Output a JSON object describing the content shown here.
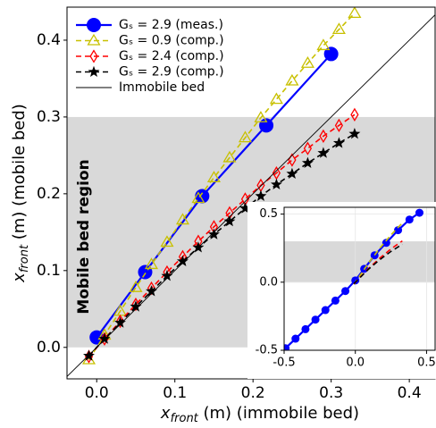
{
  "chart_data": [
    {
      "type": "line",
      "xlabel": {
        "main": "x",
        "sub": "front",
        "rest": " (m) (immobile bed)"
      },
      "ylabel": {
        "main": "x",
        "sub": "front",
        "rest": " (m) (mobile bed)"
      },
      "annotation": "Mobile bed region",
      "shaded_region": {
        "y": [
          0,
          0.3
        ],
        "color": "#d9d9d9"
      },
      "xlim": [
        -0.038,
        0.433
      ],
      "ylim": [
        -0.041,
        0.443
      ],
      "xticks": [
        {
          "value": 0,
          "label": "0.0"
        },
        0.1,
        0.2,
        0.3,
        0.4
      ],
      "yticks": [
        {
          "value": 0,
          "label": "0.0"
        },
        0.1,
        0.2,
        0.3,
        0.4
      ],
      "legend": "upper left",
      "series": [
        {
          "name": "Gₛ = 2.9 (meas.)",
          "color": "#0000ff",
          "marker": "circle",
          "linestyle": "solid",
          "x": [
            0.0,
            0.062,
            0.135,
            0.217,
            0.3
          ],
          "values": [
            0.013,
            0.098,
            0.197,
            0.289,
            0.382
          ]
        },
        {
          "name": "Gₛ = 0.9 (comp.)",
          "color": "#c8c000",
          "marker": "triangle",
          "linestyle": "dashed",
          "x": [
            -0.01,
            0.01,
            0.03,
            0.05,
            0.07,
            0.09,
            0.11,
            0.13,
            0.15,
            0.17,
            0.19,
            0.21,
            0.23,
            0.25,
            0.27,
            0.29,
            0.31,
            0.33
          ],
          "values": [
            -0.016,
            0.016,
            0.047,
            0.078,
            0.108,
            0.137,
            0.166,
            0.194,
            0.221,
            0.247,
            0.273,
            0.299,
            0.323,
            0.347,
            0.37,
            0.393,
            0.414,
            0.435
          ]
        },
        {
          "name": "Gₛ = 2.4 (comp.)",
          "color": "#ff0000",
          "marker": "diamond",
          "linestyle": "dashed",
          "x": [
            -0.01,
            0.01,
            0.03,
            0.05,
            0.07,
            0.09,
            0.11,
            0.13,
            0.15,
            0.17,
            0.19,
            0.21,
            0.23,
            0.25,
            0.27,
            0.29,
            0.31,
            0.33
          ],
          "values": [
            -0.012,
            0.011,
            0.034,
            0.056,
            0.077,
            0.098,
            0.118,
            0.138,
            0.157,
            0.175,
            0.193,
            0.211,
            0.227,
            0.244,
            0.259,
            0.275,
            0.289,
            0.303
          ]
        },
        {
          "name": "Gₛ = 2.9 (comp.)",
          "color": "#000000",
          "marker": "star",
          "linestyle": "dashed",
          "x": [
            -0.01,
            0.01,
            0.03,
            0.05,
            0.07,
            0.09,
            0.11,
            0.13,
            0.15,
            0.17,
            0.19,
            0.21,
            0.23,
            0.25,
            0.27,
            0.29,
            0.31,
            0.33
          ],
          "values": [
            -0.011,
            0.011,
            0.032,
            0.053,
            0.073,
            0.093,
            0.112,
            0.13,
            0.147,
            0.164,
            0.181,
            0.197,
            0.212,
            0.226,
            0.24,
            0.253,
            0.266,
            0.278
          ]
        },
        {
          "name": "Immobile bed",
          "color": "#000000",
          "marker": "none",
          "linestyle": "thin",
          "x": [
            -0.04,
            0.44
          ],
          "values": [
            -0.04,
            0.44
          ]
        }
      ]
    },
    {
      "type": "line",
      "shaded_region": {
        "y": [
          0,
          0.3
        ],
        "color": "#d9d9d9"
      },
      "xlim": [
        -0.5,
        0.56
      ],
      "ylim": [
        -0.5,
        0.55
      ],
      "xticks": [
        -0.5,
        {
          "value": 0,
          "label": "0.0"
        },
        0.5
      ],
      "yticks": [
        -0.5,
        {
          "value": 0,
          "label": "0.0"
        },
        0.5
      ],
      "grid": true,
      "series": [
        {
          "color": "#0000ff",
          "marker": "circle",
          "linestyle": "solid",
          "x": [
            -0.49,
            -0.42,
            -0.35,
            -0.28,
            -0.21,
            -0.14,
            -0.07,
            0.0,
            0.062,
            0.135,
            0.217,
            0.3,
            0.38,
            0.45
          ],
          "values": [
            -0.485,
            -0.415,
            -0.345,
            -0.275,
            -0.205,
            -0.135,
            -0.065,
            0.013,
            0.098,
            0.197,
            0.289,
            0.382,
            0.46,
            0.51
          ]
        },
        {
          "color": "#c8c000",
          "marker": "none",
          "linestyle": "dashed",
          "x": [
            -0.01,
            0.09,
            0.17,
            0.25,
            0.33
          ],
          "values": [
            -0.016,
            0.137,
            0.247,
            0.347,
            0.435
          ]
        },
        {
          "color": "#ff0000",
          "marker": "none",
          "linestyle": "dashed",
          "x": [
            -0.01,
            0.09,
            0.17,
            0.25,
            0.33
          ],
          "values": [
            -0.012,
            0.098,
            0.175,
            0.244,
            0.303
          ]
        },
        {
          "color": "#000000",
          "marker": "none",
          "linestyle": "dashed",
          "x": [
            -0.01,
            0.09,
            0.17,
            0.25,
            0.33
          ],
          "values": [
            -0.011,
            0.093,
            0.164,
            0.226,
            0.278
          ]
        }
      ]
    }
  ]
}
